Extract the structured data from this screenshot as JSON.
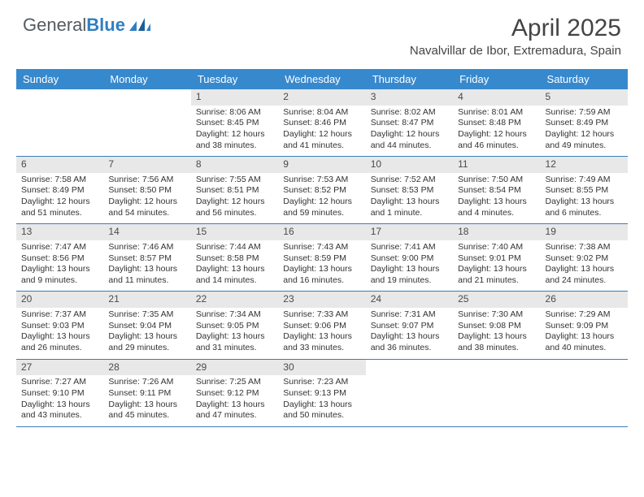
{
  "brand": {
    "name_gray": "General",
    "name_blue": "Blue"
  },
  "title": "April 2025",
  "location": "Navalvillar de Ibor, Extremadura, Spain",
  "colors": {
    "header_bg": "#3789ce",
    "header_text": "#ffffff",
    "daynum_bg": "#e8e8e8",
    "week_border": "#3b7db8",
    "brand_gray": "#555b60",
    "brand_blue": "#2f7fc2"
  },
  "weekdays": [
    "Sunday",
    "Monday",
    "Tuesday",
    "Wednesday",
    "Thursday",
    "Friday",
    "Saturday"
  ],
  "weeks": [
    [
      {
        "n": "",
        "sunrise": "",
        "sunset": "",
        "daylight": ""
      },
      {
        "n": "",
        "sunrise": "",
        "sunset": "",
        "daylight": ""
      },
      {
        "n": "1",
        "sunrise": "Sunrise: 8:06 AM",
        "sunset": "Sunset: 8:45 PM",
        "daylight": "Daylight: 12 hours and 38 minutes."
      },
      {
        "n": "2",
        "sunrise": "Sunrise: 8:04 AM",
        "sunset": "Sunset: 8:46 PM",
        "daylight": "Daylight: 12 hours and 41 minutes."
      },
      {
        "n": "3",
        "sunrise": "Sunrise: 8:02 AM",
        "sunset": "Sunset: 8:47 PM",
        "daylight": "Daylight: 12 hours and 44 minutes."
      },
      {
        "n": "4",
        "sunrise": "Sunrise: 8:01 AM",
        "sunset": "Sunset: 8:48 PM",
        "daylight": "Daylight: 12 hours and 46 minutes."
      },
      {
        "n": "5",
        "sunrise": "Sunrise: 7:59 AM",
        "sunset": "Sunset: 8:49 PM",
        "daylight": "Daylight: 12 hours and 49 minutes."
      }
    ],
    [
      {
        "n": "6",
        "sunrise": "Sunrise: 7:58 AM",
        "sunset": "Sunset: 8:49 PM",
        "daylight": "Daylight: 12 hours and 51 minutes."
      },
      {
        "n": "7",
        "sunrise": "Sunrise: 7:56 AM",
        "sunset": "Sunset: 8:50 PM",
        "daylight": "Daylight: 12 hours and 54 minutes."
      },
      {
        "n": "8",
        "sunrise": "Sunrise: 7:55 AM",
        "sunset": "Sunset: 8:51 PM",
        "daylight": "Daylight: 12 hours and 56 minutes."
      },
      {
        "n": "9",
        "sunrise": "Sunrise: 7:53 AM",
        "sunset": "Sunset: 8:52 PM",
        "daylight": "Daylight: 12 hours and 59 minutes."
      },
      {
        "n": "10",
        "sunrise": "Sunrise: 7:52 AM",
        "sunset": "Sunset: 8:53 PM",
        "daylight": "Daylight: 13 hours and 1 minute."
      },
      {
        "n": "11",
        "sunrise": "Sunrise: 7:50 AM",
        "sunset": "Sunset: 8:54 PM",
        "daylight": "Daylight: 13 hours and 4 minutes."
      },
      {
        "n": "12",
        "sunrise": "Sunrise: 7:49 AM",
        "sunset": "Sunset: 8:55 PM",
        "daylight": "Daylight: 13 hours and 6 minutes."
      }
    ],
    [
      {
        "n": "13",
        "sunrise": "Sunrise: 7:47 AM",
        "sunset": "Sunset: 8:56 PM",
        "daylight": "Daylight: 13 hours and 9 minutes."
      },
      {
        "n": "14",
        "sunrise": "Sunrise: 7:46 AM",
        "sunset": "Sunset: 8:57 PM",
        "daylight": "Daylight: 13 hours and 11 minutes."
      },
      {
        "n": "15",
        "sunrise": "Sunrise: 7:44 AM",
        "sunset": "Sunset: 8:58 PM",
        "daylight": "Daylight: 13 hours and 14 minutes."
      },
      {
        "n": "16",
        "sunrise": "Sunrise: 7:43 AM",
        "sunset": "Sunset: 8:59 PM",
        "daylight": "Daylight: 13 hours and 16 minutes."
      },
      {
        "n": "17",
        "sunrise": "Sunrise: 7:41 AM",
        "sunset": "Sunset: 9:00 PM",
        "daylight": "Daylight: 13 hours and 19 minutes."
      },
      {
        "n": "18",
        "sunrise": "Sunrise: 7:40 AM",
        "sunset": "Sunset: 9:01 PM",
        "daylight": "Daylight: 13 hours and 21 minutes."
      },
      {
        "n": "19",
        "sunrise": "Sunrise: 7:38 AM",
        "sunset": "Sunset: 9:02 PM",
        "daylight": "Daylight: 13 hours and 24 minutes."
      }
    ],
    [
      {
        "n": "20",
        "sunrise": "Sunrise: 7:37 AM",
        "sunset": "Sunset: 9:03 PM",
        "daylight": "Daylight: 13 hours and 26 minutes."
      },
      {
        "n": "21",
        "sunrise": "Sunrise: 7:35 AM",
        "sunset": "Sunset: 9:04 PM",
        "daylight": "Daylight: 13 hours and 29 minutes."
      },
      {
        "n": "22",
        "sunrise": "Sunrise: 7:34 AM",
        "sunset": "Sunset: 9:05 PM",
        "daylight": "Daylight: 13 hours and 31 minutes."
      },
      {
        "n": "23",
        "sunrise": "Sunrise: 7:33 AM",
        "sunset": "Sunset: 9:06 PM",
        "daylight": "Daylight: 13 hours and 33 minutes."
      },
      {
        "n": "24",
        "sunrise": "Sunrise: 7:31 AM",
        "sunset": "Sunset: 9:07 PM",
        "daylight": "Daylight: 13 hours and 36 minutes."
      },
      {
        "n": "25",
        "sunrise": "Sunrise: 7:30 AM",
        "sunset": "Sunset: 9:08 PM",
        "daylight": "Daylight: 13 hours and 38 minutes."
      },
      {
        "n": "26",
        "sunrise": "Sunrise: 7:29 AM",
        "sunset": "Sunset: 9:09 PM",
        "daylight": "Daylight: 13 hours and 40 minutes."
      }
    ],
    [
      {
        "n": "27",
        "sunrise": "Sunrise: 7:27 AM",
        "sunset": "Sunset: 9:10 PM",
        "daylight": "Daylight: 13 hours and 43 minutes."
      },
      {
        "n": "28",
        "sunrise": "Sunrise: 7:26 AM",
        "sunset": "Sunset: 9:11 PM",
        "daylight": "Daylight: 13 hours and 45 minutes."
      },
      {
        "n": "29",
        "sunrise": "Sunrise: 7:25 AM",
        "sunset": "Sunset: 9:12 PM",
        "daylight": "Daylight: 13 hours and 47 minutes."
      },
      {
        "n": "30",
        "sunrise": "Sunrise: 7:23 AM",
        "sunset": "Sunset: 9:13 PM",
        "daylight": "Daylight: 13 hours and 50 minutes."
      },
      {
        "n": "",
        "sunrise": "",
        "sunset": "",
        "daylight": ""
      },
      {
        "n": "",
        "sunrise": "",
        "sunset": "",
        "daylight": ""
      },
      {
        "n": "",
        "sunrise": "",
        "sunset": "",
        "daylight": ""
      }
    ]
  ]
}
